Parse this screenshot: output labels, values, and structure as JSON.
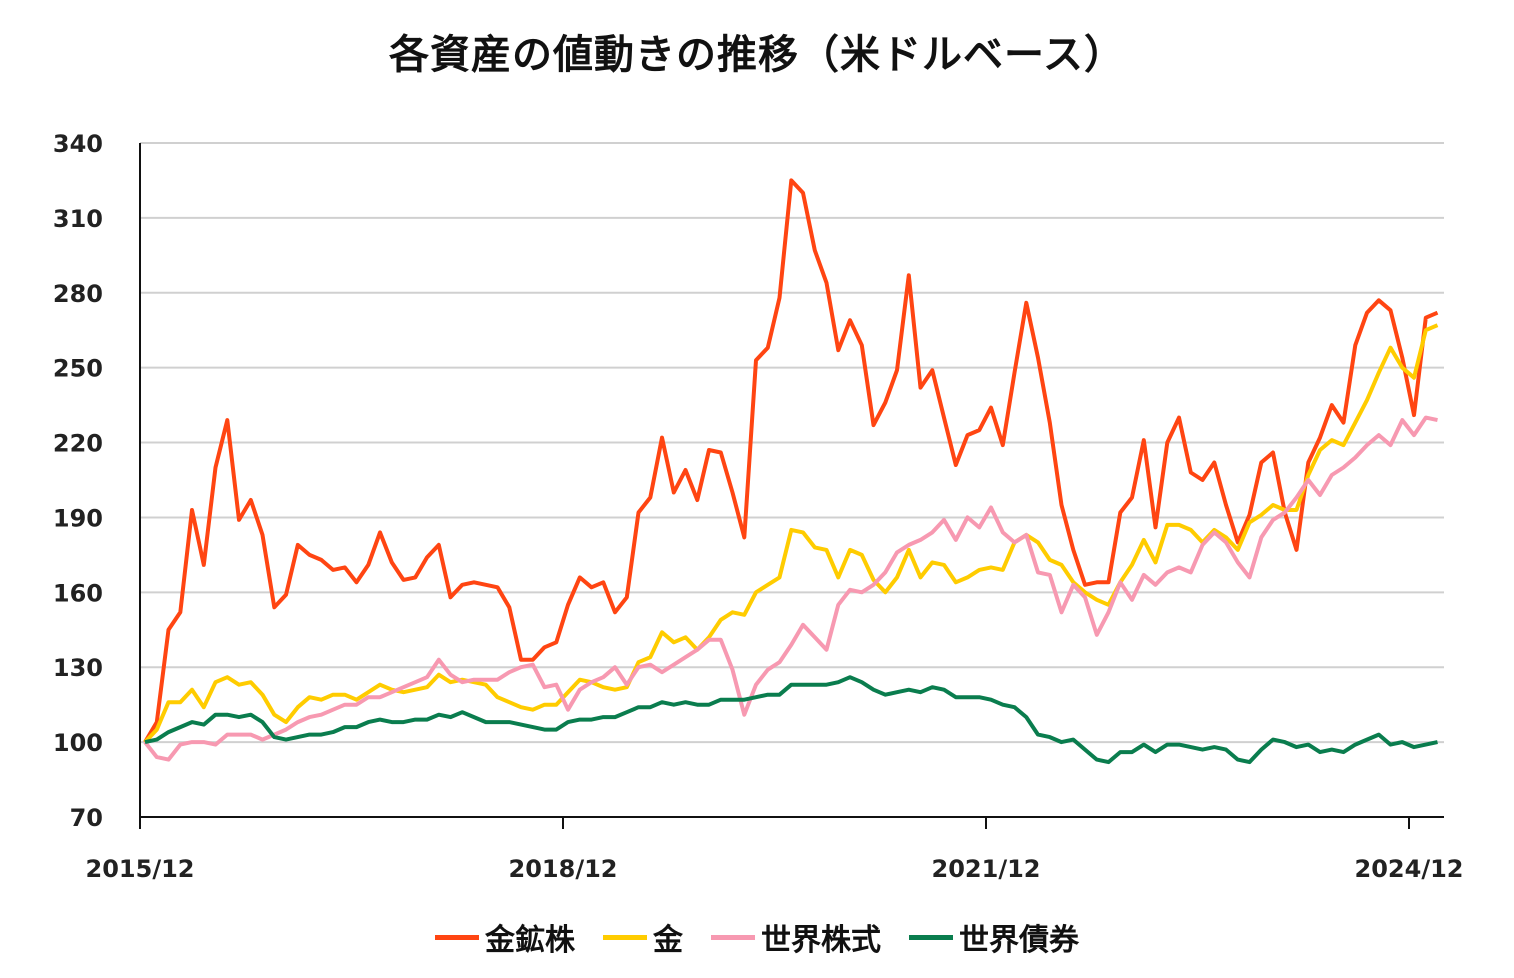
{
  "chart_data": {
    "type": "line",
    "title": "各資産の値動きの推移（米ドルベース）",
    "xlabel": "",
    "ylabel": "",
    "ylim": [
      70,
      340
    ],
    "yticks": [
      70,
      100,
      130,
      160,
      190,
      220,
      250,
      280,
      310,
      340
    ],
    "xticks": [
      "2015/12",
      "2018/12",
      "2021/12",
      "2024/12"
    ],
    "grid": true,
    "legend_position": "bottom",
    "x": [
      "2015/12",
      "2016/01",
      "2016/02",
      "2016/03",
      "2016/04",
      "2016/05",
      "2016/06",
      "2016/07",
      "2016/08",
      "2016/09",
      "2016/10",
      "2016/11",
      "2016/12",
      "2017/01",
      "2017/02",
      "2017/03",
      "2017/04",
      "2017/05",
      "2017/06",
      "2017/07",
      "2017/08",
      "2017/09",
      "2017/10",
      "2017/11",
      "2017/12",
      "2018/01",
      "2018/02",
      "2018/03",
      "2018/04",
      "2018/05",
      "2018/06",
      "2018/07",
      "2018/08",
      "2018/09",
      "2018/10",
      "2018/11",
      "2018/12",
      "2019/01",
      "2019/02",
      "2019/03",
      "2019/04",
      "2019/05",
      "2019/06",
      "2019/07",
      "2019/08",
      "2019/09",
      "2019/10",
      "2019/11",
      "2019/12",
      "2020/01",
      "2020/02",
      "2020/03",
      "2020/04",
      "2020/05",
      "2020/06",
      "2020/07",
      "2020/08",
      "2020/09",
      "2020/10",
      "2020/11",
      "2020/12",
      "2021/01",
      "2021/02",
      "2021/03",
      "2021/04",
      "2021/05",
      "2021/06",
      "2021/07",
      "2021/08",
      "2021/09",
      "2021/10",
      "2021/11",
      "2021/12",
      "2022/01",
      "2022/02",
      "2022/03",
      "2022/04",
      "2022/05",
      "2022/06",
      "2022/07",
      "2022/08",
      "2022/09",
      "2022/10",
      "2022/11",
      "2022/12",
      "2023/01",
      "2023/02",
      "2023/03",
      "2023/04",
      "2023/05",
      "2023/06",
      "2023/07",
      "2023/08",
      "2023/09",
      "2023/10",
      "2023/11",
      "2023/12",
      "2024/01",
      "2024/02",
      "2024/03",
      "2024/04",
      "2024/05",
      "2024/06",
      "2024/07",
      "2024/08",
      "2024/09",
      "2024/10",
      "2024/11",
      "2024/12",
      "2025/01",
      "2025/02"
    ],
    "series": [
      {
        "name": "金鉱株",
        "color": "#FF4512",
        "values": [
          100,
          108,
          145,
          152,
          193,
          171,
          210,
          229,
          189,
          197,
          183,
          154,
          159,
          179,
          175,
          173,
          169,
          170,
          164,
          171,
          184,
          172,
          165,
          166,
          174,
          179,
          158,
          163,
          164,
          163,
          162,
          154,
          133,
          133,
          138,
          140,
          155,
          166,
          162,
          164,
          152,
          158,
          192,
          198,
          222,
          200,
          209,
          197,
          217,
          216,
          200,
          182,
          253,
          258,
          278,
          325,
          320,
          297,
          284,
          257,
          269,
          259,
          227,
          236,
          249,
          287,
          242,
          249,
          230,
          211,
          223,
          225,
          234,
          219,
          248,
          276,
          254,
          228,
          195,
          177,
          163,
          164,
          164,
          192,
          198,
          221,
          186,
          220,
          230,
          208,
          205,
          212,
          195,
          180,
          191,
          212,
          216,
          192,
          177,
          212,
          222,
          235,
          228,
          259,
          272,
          277,
          273,
          254,
          231,
          270,
          272
        ]
      },
      {
        "name": "金",
        "color": "#FFCC00",
        "values": [
          100,
          105,
          116,
          116,
          121,
          114,
          124,
          126,
          123,
          124,
          119,
          111,
          108,
          114,
          118,
          117,
          119,
          119,
          117,
          120,
          123,
          121,
          120,
          121,
          122,
          127,
          124,
          125,
          124,
          123,
          118,
          116,
          114,
          113,
          115,
          115,
          120,
          125,
          124,
          122,
          121,
          122,
          132,
          134,
          144,
          140,
          142,
          137,
          142,
          149,
          152,
          151,
          160,
          163,
          166,
          185,
          184,
          178,
          177,
          166,
          177,
          175,
          165,
          160,
          166,
          177,
          166,
          172,
          171,
          164,
          166,
          169,
          170,
          169,
          180,
          183,
          180,
          173,
          171,
          164,
          160,
          157,
          155,
          164,
          171,
          181,
          172,
          187,
          187,
          185,
          180,
          185,
          182,
          177,
          188,
          191,
          195,
          193,
          193,
          207,
          217,
          221,
          219,
          228,
          237,
          248,
          258,
          250,
          246,
          265,
          267
        ]
      },
      {
        "name": "世界株式",
        "color": "#F799B1",
        "values": [
          100,
          94,
          93,
          99,
          100,
          100,
          99,
          103,
          103,
          103,
          101,
          103,
          105,
          108,
          110,
          111,
          113,
          115,
          115,
          118,
          118,
          120,
          122,
          124,
          126,
          133,
          127,
          124,
          125,
          125,
          125,
          128,
          130,
          131,
          122,
          123,
          113,
          121,
          124,
          126,
          130,
          123,
          130,
          131,
          128,
          131,
          134,
          137,
          141,
          141,
          129,
          111,
          123,
          129,
          132,
          139,
          147,
          142,
          137,
          155,
          161,
          160,
          163,
          168,
          176,
          179,
          181,
          184,
          189,
          181,
          190,
          186,
          194,
          184,
          180,
          183,
          168,
          167,
          152,
          163,
          158,
          143,
          152,
          164,
          157,
          167,
          163,
          168,
          170,
          168,
          179,
          184,
          180,
          172,
          166,
          182,
          189,
          192,
          198,
          205,
          199,
          207,
          210,
          214,
          219,
          223,
          219,
          229,
          223,
          230,
          229
        ]
      },
      {
        "name": "世界債券",
        "color": "#0A7D4E",
        "values": [
          100,
          101,
          104,
          106,
          108,
          107,
          111,
          111,
          110,
          111,
          108,
          102,
          101,
          102,
          103,
          103,
          104,
          106,
          106,
          108,
          109,
          108,
          108,
          109,
          109,
          111,
          110,
          112,
          110,
          108,
          108,
          108,
          107,
          106,
          105,
          105,
          108,
          109,
          109,
          110,
          110,
          112,
          114,
          114,
          116,
          115,
          116,
          115,
          115,
          117,
          117,
          117,
          118,
          119,
          119,
          123,
          123,
          123,
          123,
          124,
          126,
          124,
          121,
          119,
          120,
          121,
          120,
          122,
          121,
          118,
          118,
          118,
          117,
          115,
          114,
          110,
          103,
          102,
          100,
          101,
          97,
          93,
          92,
          96,
          96,
          99,
          96,
          99,
          99,
          98,
          97,
          98,
          97,
          93,
          92,
          97,
          101,
          100,
          98,
          99,
          96,
          97,
          96,
          99,
          101,
          103,
          99,
          100,
          98,
          99,
          100
        ]
      }
    ]
  }
}
